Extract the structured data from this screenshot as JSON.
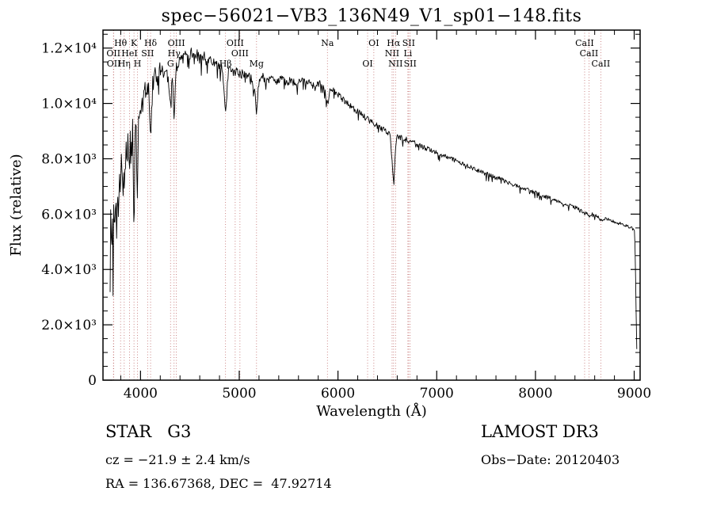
{
  "footer": {
    "class_label": "STAR   G3",
    "survey": "LAMOST DR3",
    "cz": "cz = −21.9 ± 2.4 km/s",
    "obs_date": "Obs−Date: 20120403",
    "coords": "RA = 136.67368, DEC =  47.92714"
  },
  "chart_data": {
    "type": "line",
    "title": "spec−56021−VB3_136N49_V1_sp01−148.fits",
    "xlabel": "Wavelength (Å)",
    "ylabel": "Flux (relative)",
    "xlim": [
      3620,
      9060
    ],
    "ylim": [
      0,
      12650
    ],
    "xticks": [
      4000,
      5000,
      6000,
      7000,
      8000,
      9000
    ],
    "xtick_labels": [
      "4000",
      "5000",
      "6000",
      "7000",
      "8000",
      "9000"
    ],
    "yticks": [
      0,
      2000,
      4000,
      6000,
      8000,
      10000,
      12000
    ],
    "ytick_labels": [
      "0",
      "2.0×10³",
      "4.0×10³",
      "6.0×10³",
      "8.0×10³",
      "1.0×10⁴",
      "1.2×10⁴"
    ],
    "x_minor_step": 200,
    "y_minor_step": 500,
    "grid": false,
    "line_color": "#000000",
    "marker_color": "#c06a6a",
    "marker_label_color": "#7a2222",
    "spectral_lines": [
      {
        "label": "OII",
        "wavelength": 3726,
        "row": 2
      },
      {
        "label": "OII",
        "wavelength": 3729,
        "row": 3
      },
      {
        "label": "Hθ",
        "wavelength": 3798,
        "row": 1
      },
      {
        "label": "Hη",
        "wavelength": 3835,
        "row": 3
      },
      {
        "label": "HeI",
        "wavelength": 3889,
        "row": 2
      },
      {
        "label": "K",
        "wavelength": 3934,
        "row": 1
      },
      {
        "label": "H",
        "wavelength": 3969,
        "row": 3
      },
      {
        "label": "SII",
        "wavelength": 4072,
        "row": 2
      },
      {
        "label": "Hδ",
        "wavelength": 4102,
        "row": 1
      },
      {
        "label": "G",
        "wavelength": 4304,
        "row": 3
      },
      {
        "label": "Hγ",
        "wavelength": 4340,
        "row": 2
      },
      {
        "label": "OIII",
        "wavelength": 4363,
        "row": 1
      },
      {
        "label": "Hβ",
        "wavelength": 4861,
        "row": 3
      },
      {
        "label": "OIII",
        "wavelength": 4959,
        "row": 1
      },
      {
        "label": "OIII",
        "wavelength": 5007,
        "row": 2
      },
      {
        "label": "Mg",
        "wavelength": 5175,
        "row": 3
      },
      {
        "label": "Na",
        "wavelength": 5893,
        "row": 1
      },
      {
        "label": "OI",
        "wavelength": 6300,
        "row": 3
      },
      {
        "label": "OI",
        "wavelength": 6363,
        "row": 1
      },
      {
        "label": "NII",
        "wavelength": 6548,
        "row": 2
      },
      {
        "label": "Hα",
        "wavelength": 6563,
        "row": 1
      },
      {
        "label": "NII",
        "wavelength": 6583,
        "row": 3
      },
      {
        "label": "Li",
        "wavelength": 6708,
        "row": 2
      },
      {
        "label": "SII",
        "wavelength": 6716,
        "row": 1
      },
      {
        "label": "SII",
        "wavelength": 6731,
        "row": 3
      },
      {
        "label": "CaII",
        "wavelength": 8498,
        "row": 1
      },
      {
        "label": "CaII",
        "wavelength": 8542,
        "row": 2
      },
      {
        "label": "CaII",
        "wavelength": 8662,
        "row": 3
      }
    ],
    "spectrum_keypoints": [
      [
        3692,
        2900
      ],
      [
        3698,
        6800
      ],
      [
        3706,
        4700
      ],
      [
        3714,
        6200
      ],
      [
        3722,
        5000
      ],
      [
        3730,
        6600
      ],
      [
        3738,
        5400
      ],
      [
        3748,
        7000
      ],
      [
        3756,
        4900
      ],
      [
        3766,
        7200
      ],
      [
        3776,
        6100
      ],
      [
        3786,
        7400
      ],
      [
        3798,
        6600
      ],
      [
        3808,
        8100
      ],
      [
        3820,
        6700
      ],
      [
        3830,
        7600
      ],
      [
        3840,
        6900
      ],
      [
        3852,
        8700
      ],
      [
        3862,
        7300
      ],
      [
        3874,
        8900
      ],
      [
        3889,
        7400
      ],
      [
        3900,
        9400
      ],
      [
        3912,
        8300
      ],
      [
        3922,
        9200
      ],
      [
        3934,
        4800
      ],
      [
        3944,
        8600
      ],
      [
        3956,
        9200
      ],
      [
        3969,
        6100
      ],
      [
        3980,
        9500
      ],
      [
        3995,
        10000
      ],
      [
        4010,
        10200
      ],
      [
        4025,
        9900
      ],
      [
        4045,
        10600
      ],
      [
        4065,
        10400
      ],
      [
        4085,
        10700
      ],
      [
        4102,
        8700
      ],
      [
        4120,
        10800
      ],
      [
        4145,
        11100
      ],
      [
        4170,
        10900
      ],
      [
        4200,
        11300
      ],
      [
        4230,
        11100
      ],
      [
        4260,
        11300
      ],
      [
        4285,
        10700
      ],
      [
        4304,
        9900
      ],
      [
        4325,
        11000
      ],
      [
        4340,
        9300
      ],
      [
        4360,
        11200
      ],
      [
        4385,
        11500
      ],
      [
        4420,
        11600
      ],
      [
        4450,
        11800
      ],
      [
        4480,
        11500
      ],
      [
        4510,
        11900
      ],
      [
        4540,
        11600
      ],
      [
        4570,
        11800
      ],
      [
        4600,
        11600
      ],
      [
        4640,
        11700
      ],
      [
        4680,
        11500
      ],
      [
        4720,
        11600
      ],
      [
        4760,
        11400
      ],
      [
        4800,
        11400
      ],
      [
        4830,
        11200
      ],
      [
        4861,
        9700
      ],
      [
        4890,
        11200
      ],
      [
        4920,
        11300
      ],
      [
        4950,
        11100
      ],
      [
        4980,
        11200
      ],
      [
        5010,
        11000
      ],
      [
        5040,
        11100
      ],
      [
        5080,
        10900
      ],
      [
        5120,
        11000
      ],
      [
        5160,
        10400
      ],
      [
        5175,
        9400
      ],
      [
        5195,
        10700
      ],
      [
        5230,
        11000
      ],
      [
        5270,
        10800
      ],
      [
        5320,
        10950
      ],
      [
        5370,
        10800
      ],
      [
        5420,
        10900
      ],
      [
        5470,
        10750
      ],
      [
        5520,
        10850
      ],
      [
        5570,
        10700
      ],
      [
        5620,
        10850
      ],
      [
        5670,
        10750
      ],
      [
        5720,
        10800
      ],
      [
        5770,
        10700
      ],
      [
        5820,
        10750
      ],
      [
        5860,
        10600
      ],
      [
        5893,
        9950
      ],
      [
        5925,
        10550
      ],
      [
        5960,
        10450
      ],
      [
        6000,
        10300
      ],
      [
        6050,
        10150
      ],
      [
        6100,
        10000
      ],
      [
        6150,
        9850
      ],
      [
        6200,
        9700
      ],
      [
        6250,
        9570
      ],
      [
        6300,
        9430
      ],
      [
        6350,
        9300
      ],
      [
        6400,
        9180
      ],
      [
        6450,
        9070
      ],
      [
        6500,
        8970
      ],
      [
        6530,
        8900
      ],
      [
        6563,
        7050
      ],
      [
        6590,
        8830
      ],
      [
        6640,
        8760
      ],
      [
        6700,
        8680
      ],
      [
        6760,
        8590
      ],
      [
        6820,
        8500
      ],
      [
        6880,
        8400
      ],
      [
        6940,
        8310
      ],
      [
        7000,
        8220
      ],
      [
        7060,
        8120
      ],
      [
        7120,
        8030
      ],
      [
        7180,
        7940
      ],
      [
        7240,
        7850
      ],
      [
        7300,
        7760
      ],
      [
        7360,
        7670
      ],
      [
        7420,
        7580
      ],
      [
        7480,
        7490
      ],
      [
        7540,
        7410
      ],
      [
        7600,
        7320
      ],
      [
        7660,
        7240
      ],
      [
        7720,
        7150
      ],
      [
        7780,
        7070
      ],
      [
        7840,
        6990
      ],
      [
        7900,
        6900
      ],
      [
        7960,
        6820
      ],
      [
        8020,
        6740
      ],
      [
        8080,
        6660
      ],
      [
        8140,
        6580
      ],
      [
        8200,
        6500
      ],
      [
        8260,
        6420
      ],
      [
        8320,
        6340
      ],
      [
        8380,
        6270
      ],
      [
        8440,
        6190
      ],
      [
        8498,
        6000
      ],
      [
        8520,
        6080
      ],
      [
        8542,
        5900
      ],
      [
        8580,
        6000
      ],
      [
        8620,
        5950
      ],
      [
        8662,
        5750
      ],
      [
        8700,
        5850
      ],
      [
        8760,
        5780
      ],
      [
        8820,
        5700
      ],
      [
        8880,
        5630
      ],
      [
        8930,
        5570
      ],
      [
        8970,
        5500
      ],
      [
        9000,
        5450
      ],
      [
        9006,
        5200
      ],
      [
        9012,
        4200
      ],
      [
        9018,
        2800
      ],
      [
        9024,
        1400
      ],
      [
        9030,
        700
      ]
    ],
    "noise_profile": [
      [
        3692,
        650
      ],
      [
        3850,
        520
      ],
      [
        3980,
        380
      ],
      [
        4150,
        280
      ],
      [
        4400,
        220
      ],
      [
        4800,
        180
      ],
      [
        5200,
        150
      ],
      [
        5800,
        130
      ],
      [
        6300,
        110
      ],
      [
        7000,
        90
      ],
      [
        8000,
        75
      ],
      [
        9030,
        55
      ]
    ],
    "sample_step": 6
  }
}
